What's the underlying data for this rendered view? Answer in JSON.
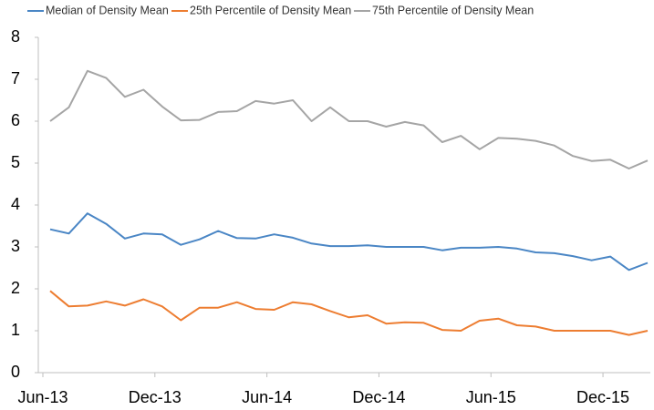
{
  "chart_data": {
    "type": "line",
    "categories": [
      "Jun-13",
      null,
      null,
      null,
      null,
      null,
      "Dec-13",
      null,
      null,
      null,
      null,
      null,
      "Jun-14",
      null,
      null,
      null,
      null,
      null,
      "Dec-14",
      null,
      null,
      null,
      null,
      null,
      "Jun-15",
      null,
      null,
      null,
      null,
      null,
      "Dec-15",
      null,
      null
    ],
    "series": [
      {
        "name": "Median of Density Mean",
        "color": "#4a86c5",
        "values": [
          3.42,
          3.32,
          3.8,
          3.55,
          3.2,
          3.32,
          3.3,
          3.05,
          3.18,
          3.38,
          3.21,
          3.2,
          3.3,
          3.22,
          3.08,
          3.02,
          3.02,
          3.04,
          3.0,
          3.0,
          3.0,
          2.92,
          2.98,
          2.98,
          3.0,
          2.96,
          2.87,
          2.85,
          2.78,
          2.68,
          2.77,
          2.45,
          2.62
        ]
      },
      {
        "name": "25th Percentile of Density Mean",
        "color": "#ed7d31",
        "values": [
          1.95,
          1.58,
          1.6,
          1.7,
          1.6,
          1.75,
          1.58,
          1.25,
          1.55,
          1.55,
          1.68,
          1.52,
          1.5,
          1.68,
          1.63,
          1.47,
          1.32,
          1.37,
          1.17,
          1.2,
          1.19,
          1.02,
          1.0,
          1.24,
          1.29,
          1.13,
          1.1,
          1.0,
          1.0,
          1.0,
          1.0,
          0.9,
          1.0
        ]
      },
      {
        "name": "75th Percentile of Density Mean",
        "color": "#a5a5a5",
        "values": [
          6.0,
          6.33,
          7.2,
          7.03,
          6.58,
          6.75,
          6.35,
          6.02,
          6.03,
          6.22,
          6.24,
          6.48,
          6.42,
          6.5,
          6.0,
          6.33,
          6.0,
          6.0,
          5.87,
          5.98,
          5.9,
          5.5,
          5.65,
          5.33,
          5.6,
          5.58,
          5.53,
          5.42,
          5.17,
          5.05,
          5.08,
          4.87,
          5.06
        ]
      }
    ],
    "ylim": [
      0,
      8
    ],
    "yticks": [
      0,
      1,
      2,
      3,
      4,
      5,
      6,
      7,
      8
    ],
    "grid": false,
    "legend": "top"
  }
}
